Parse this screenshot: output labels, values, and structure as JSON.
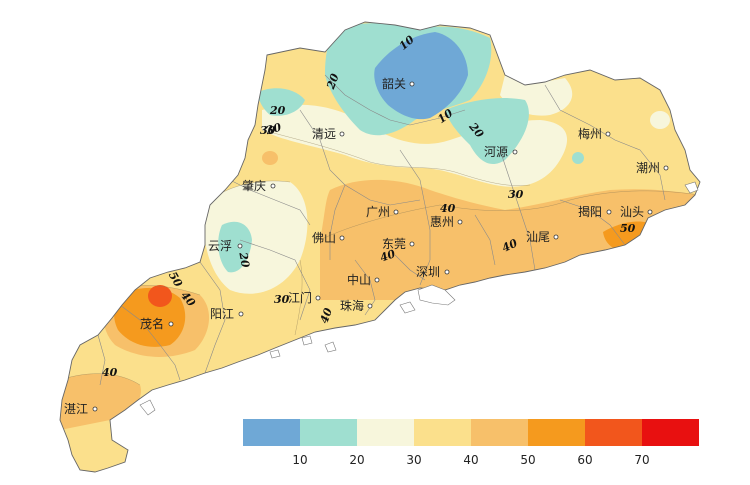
{
  "legend": {
    "colors": [
      "#6fa8d6",
      "#9fdfd0",
      "#f7f6dc",
      "#fbe08c",
      "#f7c06a",
      "#f59a1e",
      "#f2561c",
      "#e81010"
    ],
    "ticks": [
      "10",
      "20",
      "30",
      "40",
      "50",
      "60",
      "70"
    ]
  },
  "cities": [
    {
      "name": "韶关"
    },
    {
      "name": "清远"
    },
    {
      "name": "河源"
    },
    {
      "name": "梅州"
    },
    {
      "name": "潮州"
    },
    {
      "name": "肇庆"
    },
    {
      "name": "广州"
    },
    {
      "name": "惠州"
    },
    {
      "name": "揭阳"
    },
    {
      "name": "汕头"
    },
    {
      "name": "云浮"
    },
    {
      "name": "佛山"
    },
    {
      "name": "东莞"
    },
    {
      "name": "汕尾"
    },
    {
      "name": "中山"
    },
    {
      "name": "深圳"
    },
    {
      "name": "江门"
    },
    {
      "name": "珠海"
    },
    {
      "name": "阳江"
    },
    {
      "name": "茂名"
    },
    {
      "name": "湛江"
    }
  ],
  "contour_labels": [
    "10",
    "10",
    "20",
    "20",
    "30",
    "20",
    "30",
    "20",
    "30",
    "40",
    "40",
    "40",
    "50",
    "40",
    "50",
    "30",
    "40",
    "40"
  ]
}
